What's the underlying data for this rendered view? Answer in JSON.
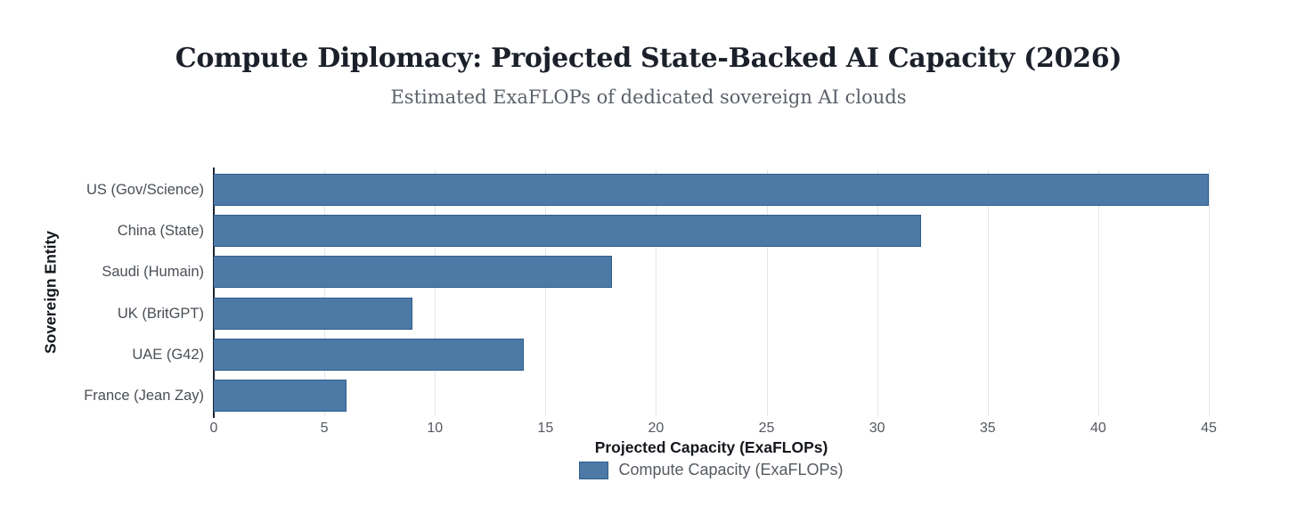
{
  "header": {
    "title": "Compute Diplomacy: Projected State-Backed AI Capacity (2026)",
    "subtitle": "Estimated ExaFLOPs of dedicated sovereign AI clouds"
  },
  "chart_data": {
    "type": "bar",
    "orientation": "horizontal",
    "title": "Compute Diplomacy: Projected State-Backed AI Capacity (2026)",
    "subtitle": "Estimated ExaFLOPs of dedicated sovereign AI clouds",
    "categories": [
      "US (Gov/Science)",
      "China (State)",
      "Saudi (Humain)",
      "UK (BritGPT)",
      "UAE (G42)",
      "France (Jean Zay)"
    ],
    "values": [
      45,
      32,
      18,
      9,
      14,
      6
    ],
    "series_name": "Compute Capacity (ExaFLOPs)",
    "xlabel": "Projected Capacity (ExaFLOPs)",
    "ylabel": "Sovereign Entity",
    "xlim": [
      0,
      45
    ],
    "xticks": [
      0,
      5,
      10,
      15,
      20,
      25,
      30,
      35,
      40,
      45
    ],
    "grid": true,
    "legend_position": "bottom",
    "bar_color": "#4d79a7",
    "bar_border_color": "#2e5e8c",
    "gridline_color": "#e3e6ea",
    "axis_line_color": "#1c2533"
  },
  "legend": {
    "items": [
      {
        "label": "Compute Capacity (ExaFLOPs)",
        "color": "#4d79a7"
      }
    ]
  }
}
